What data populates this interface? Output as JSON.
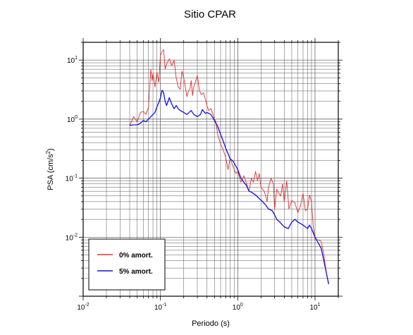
{
  "chart_data": {
    "type": "line",
    "title": "Sitio CPAR",
    "xlabel": "Periodo (s)",
    "ylabel": "PSA (cm/s²)",
    "x_scale": "log",
    "y_scale": "log",
    "xlim": [
      0.01,
      20
    ],
    "ylim": [
      0.001,
      20
    ],
    "grid": true,
    "legend_position": "bottom-left",
    "x_ticks": [
      {
        "base": "10",
        "exp": "-2",
        "value": 0.01
      },
      {
        "base": "10",
        "exp": "-1",
        "value": 0.1
      },
      {
        "base": "10",
        "exp": "0",
        "value": 1
      },
      {
        "base": "10",
        "exp": "1",
        "value": 10
      }
    ],
    "y_ticks": [
      {
        "base": "10",
        "exp": "1",
        "value": 10
      },
      {
        "base": "10",
        "exp": "0",
        "value": 1
      },
      {
        "base": "10",
        "exp": "-1",
        "value": 0.1
      },
      {
        "base": "10",
        "exp": "-2",
        "value": 0.01
      }
    ],
    "series": [
      {
        "name": "0% amort.",
        "color": "#e03030",
        "points": [
          [
            0.04,
            0.78
          ],
          [
            0.045,
            1.1
          ],
          [
            0.05,
            0.9
          ],
          [
            0.055,
            1.3
          ],
          [
            0.06,
            1.35
          ],
          [
            0.065,
            1.2
          ],
          [
            0.07,
            1.6
          ],
          [
            0.075,
            7.0
          ],
          [
            0.078,
            4.5
          ],
          [
            0.08,
            6.0
          ],
          [
            0.085,
            3.5
          ],
          [
            0.09,
            6.2
          ],
          [
            0.095,
            4.2
          ],
          [
            0.1,
            12.0
          ],
          [
            0.105,
            14.0
          ],
          [
            0.11,
            15.0
          ],
          [
            0.115,
            7.0
          ],
          [
            0.12,
            8.5
          ],
          [
            0.13,
            10.5
          ],
          [
            0.14,
            8.0
          ],
          [
            0.15,
            10.0
          ],
          [
            0.16,
            5.0
          ],
          [
            0.17,
            3.5
          ],
          [
            0.18,
            3.2
          ],
          [
            0.19,
            6.5
          ],
          [
            0.2,
            5.0
          ],
          [
            0.21,
            3.5
          ],
          [
            0.22,
            2.4
          ],
          [
            0.23,
            3.0
          ],
          [
            0.24,
            3.2
          ],
          [
            0.25,
            4.5
          ],
          [
            0.26,
            2.5
          ],
          [
            0.27,
            3.6
          ],
          [
            0.28,
            4.0
          ],
          [
            0.3,
            5.5
          ],
          [
            0.32,
            3.0
          ],
          [
            0.34,
            2.6
          ],
          [
            0.36,
            2.8
          ],
          [
            0.38,
            2.2
          ],
          [
            0.4,
            1.7
          ],
          [
            0.42,
            1.4
          ],
          [
            0.45,
            1.5
          ],
          [
            0.48,
            1.2
          ],
          [
            0.5,
            1.0
          ],
          [
            0.52,
            0.9
          ],
          [
            0.55,
            0.55
          ],
          [
            0.6,
            0.38
          ],
          [
            0.65,
            0.3
          ],
          [
            0.7,
            0.22
          ],
          [
            0.75,
            0.14
          ],
          [
            0.8,
            0.22
          ],
          [
            0.85,
            0.17
          ],
          [
            0.9,
            0.14
          ],
          [
            0.95,
            0.12
          ],
          [
            1.0,
            0.13
          ],
          [
            1.1,
            0.085
          ],
          [
            1.2,
            0.11
          ],
          [
            1.3,
            0.08
          ],
          [
            1.4,
            0.06
          ],
          [
            1.5,
            0.1
          ],
          [
            1.6,
            0.085
          ],
          [
            1.7,
            0.13
          ],
          [
            1.8,
            0.09
          ],
          [
            1.9,
            0.12
          ],
          [
            2.0,
            0.07
          ],
          [
            2.2,
            0.06
          ],
          [
            2.3,
            0.05
          ],
          [
            2.4,
            0.04
          ],
          [
            2.5,
            0.07
          ],
          [
            2.7,
            0.1
          ],
          [
            2.9,
            0.08
          ],
          [
            3.0,
            0.03
          ],
          [
            3.2,
            0.065
          ],
          [
            3.4,
            0.055
          ],
          [
            3.6,
            0.05
          ],
          [
            3.8,
            0.08
          ],
          [
            4.0,
            0.04
          ],
          [
            4.3,
            0.09
          ],
          [
            4.6,
            0.03
          ],
          [
            5.0,
            0.042
          ],
          [
            5.5,
            0.038
          ],
          [
            6.0,
            0.026
          ],
          [
            6.5,
            0.035
          ],
          [
            7.0,
            0.055
          ],
          [
            7.5,
            0.028
          ],
          [
            8.0,
            0.03
          ],
          [
            8.5,
            0.052
          ],
          [
            9.0,
            0.04
          ],
          [
            9.5,
            0.015
          ],
          [
            10.0,
            0.009
          ],
          [
            11.0,
            0.009
          ],
          [
            12.0,
            0.0085
          ],
          [
            13.0,
            0.005
          ],
          [
            14.0,
            0.0025
          ],
          [
            15.0,
            0.0017
          ]
        ]
      },
      {
        "name": "5% amort.",
        "color": "#1010e0",
        "points": [
          [
            0.04,
            0.78
          ],
          [
            0.045,
            0.8
          ],
          [
            0.05,
            0.8
          ],
          [
            0.055,
            0.85
          ],
          [
            0.06,
            0.95
          ],
          [
            0.065,
            0.9
          ],
          [
            0.07,
            1.0
          ],
          [
            0.075,
            1.1
          ],
          [
            0.08,
            1.2
          ],
          [
            0.085,
            1.3
          ],
          [
            0.09,
            1.6
          ],
          [
            0.095,
            1.9
          ],
          [
            0.1,
            2.3
          ],
          [
            0.105,
            3.1
          ],
          [
            0.11,
            2.8
          ],
          [
            0.115,
            2.0
          ],
          [
            0.12,
            1.7
          ],
          [
            0.13,
            2.3
          ],
          [
            0.14,
            1.8
          ],
          [
            0.15,
            1.5
          ],
          [
            0.16,
            1.7
          ],
          [
            0.17,
            1.5
          ],
          [
            0.18,
            1.4
          ],
          [
            0.19,
            1.35
          ],
          [
            0.2,
            1.3
          ],
          [
            0.22,
            1.2
          ],
          [
            0.25,
            1.4
          ],
          [
            0.27,
            1.2
          ],
          [
            0.3,
            1.1
          ],
          [
            0.33,
            1.2
          ],
          [
            0.35,
            1.45
          ],
          [
            0.38,
            1.25
          ],
          [
            0.4,
            1.3
          ],
          [
            0.45,
            1.2
          ],
          [
            0.5,
            0.95
          ],
          [
            0.55,
            0.75
          ],
          [
            0.6,
            0.55
          ],
          [
            0.65,
            0.42
          ],
          [
            0.7,
            0.32
          ],
          [
            0.75,
            0.26
          ],
          [
            0.8,
            0.21
          ],
          [
            0.85,
            0.2
          ],
          [
            0.9,
            0.18
          ],
          [
            1.0,
            0.14
          ],
          [
            1.1,
            0.1
          ],
          [
            1.2,
            0.085
          ],
          [
            1.3,
            0.075
          ],
          [
            1.4,
            0.06
          ],
          [
            1.5,
            0.058
          ],
          [
            1.7,
            0.052
          ],
          [
            1.9,
            0.045
          ],
          [
            2.1,
            0.04
          ],
          [
            2.3,
            0.035
          ],
          [
            2.5,
            0.03
          ],
          [
            2.8,
            0.028
          ],
          [
            3.0,
            0.024
          ],
          [
            3.2,
            0.02
          ],
          [
            3.5,
            0.018
          ],
          [
            3.8,
            0.016
          ],
          [
            4.0,
            0.015
          ],
          [
            4.5,
            0.014
          ],
          [
            5.0,
            0.018
          ],
          [
            5.5,
            0.02
          ],
          [
            6.0,
            0.018
          ],
          [
            6.5,
            0.017
          ],
          [
            7.0,
            0.016
          ],
          [
            7.5,
            0.015
          ],
          [
            8.0,
            0.014
          ],
          [
            8.5,
            0.016
          ],
          [
            9.0,
            0.014
          ],
          [
            10.0,
            0.01
          ],
          [
            11.0,
            0.008
          ],
          [
            12.0,
            0.0065
          ],
          [
            13.0,
            0.004
          ],
          [
            14.0,
            0.0025
          ],
          [
            15.0,
            0.0016
          ]
        ]
      }
    ]
  }
}
